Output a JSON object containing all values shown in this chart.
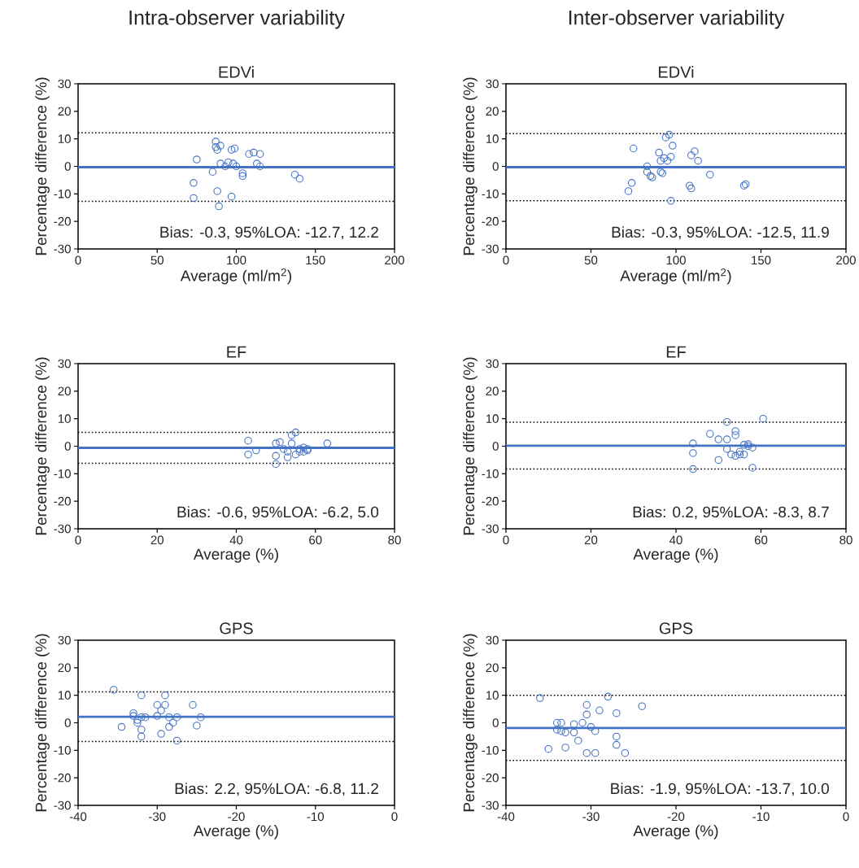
{
  "chart_data": [
    {
      "type": "scatter",
      "subtitle": "Intra-observer variability",
      "title": "EDVi",
      "xlabel": "Average (ml/m$^{2}$)",
      "ylabel": "Percentage difference (%)",
      "color": "#4472c4",
      "marker": "circle",
      "xlim": [
        0,
        200
      ],
      "xticks": [
        0,
        50,
        100,
        150,
        200
      ],
      "ylim": [
        -30,
        30
      ],
      "yticks": [
        -30,
        -20,
        -10,
        0,
        10,
        20,
        30
      ],
      "x": [
        73,
        73,
        75,
        85,
        87,
        87,
        88,
        88,
        89,
        90,
        90,
        93,
        95,
        97,
        97,
        98,
        99,
        100,
        104,
        104,
        108,
        111,
        113,
        115,
        115,
        137,
        140
      ],
      "values": [
        -6,
        -11.5,
        2.5,
        -2,
        7,
        9,
        6,
        -9,
        -14.5,
        1,
        7.5,
        0,
        1.5,
        -11,
        6,
        1,
        6.5,
        0,
        -2.5,
        -3.5,
        4.5,
        5,
        1,
        0,
        4.5,
        -3,
        -4.5
      ],
      "ref_lines": [
        {
          "axis": "y",
          "value": -0.3,
          "color": "#4472c4",
          "line_style": "solid"
        },
        {
          "axis": "y",
          "value": -12.7,
          "color": "#000000",
          "line_style": "dotted"
        },
        {
          "axis": "y",
          "value": 12.2,
          "color": "#000000",
          "line_style": "dotted"
        }
      ],
      "annotations": [
        "Bias: -0.3, 95%LOA: -12.7, 12.2"
      ]
    },
    {
      "type": "scatter",
      "subtitle": "Inter-observer variability",
      "title": "EDVi",
      "xlabel": "Average (ml/m$^{2}$)",
      "ylabel": "Percentage difference (%)",
      "color": "#4472c4",
      "marker": "circle",
      "xlim": [
        0,
        200
      ],
      "xticks": [
        0,
        50,
        100,
        150,
        200
      ],
      "ylim": [
        -30,
        30
      ],
      "yticks": [
        -30,
        -20,
        -10,
        0,
        10,
        20,
        30
      ],
      "x": [
        72,
        74,
        75,
        83,
        83,
        85,
        86,
        90,
        91,
        91,
        92,
        93,
        94,
        95,
        96,
        97,
        97,
        98,
        108,
        109,
        109,
        111,
        113,
        120,
        140,
        141
      ],
      "values": [
        -9,
        -6,
        6.5,
        0,
        -2,
        -3.5,
        -4,
        5,
        2,
        -2,
        -2.5,
        3,
        10.5,
        2,
        11.5,
        -12.5,
        3.5,
        7.5,
        -7,
        -8,
        4,
        5.5,
        2,
        -3,
        -7,
        -6.5
      ],
      "ref_lines": [
        {
          "axis": "y",
          "value": -0.3,
          "color": "#4472c4",
          "line_style": "solid"
        },
        {
          "axis": "y",
          "value": -12.5,
          "color": "#000000",
          "line_style": "dotted"
        },
        {
          "axis": "y",
          "value": 11.9,
          "color": "#000000",
          "line_style": "dotted"
        }
      ],
      "annotations": [
        "Bias: -0.3, 95%LOA: -12.5, 11.9"
      ]
    },
    {
      "type": "scatter",
      "title": "EF",
      "xlabel": "Average (%)",
      "ylabel": "Percentage difference (%)",
      "color": "#4472c4",
      "marker": "circle",
      "xlim": [
        0,
        80
      ],
      "xticks": [
        0,
        20,
        40,
        60,
        80
      ],
      "ylim": [
        -30,
        30
      ],
      "yticks": [
        -30,
        -20,
        -10,
        0,
        10,
        20,
        30
      ],
      "x": [
        43,
        43,
        45,
        50,
        50,
        50,
        51,
        52,
        53,
        53,
        54,
        54,
        55,
        55,
        56,
        56,
        57,
        57,
        58,
        58,
        63
      ],
      "values": [
        2,
        -3,
        -1.5,
        1,
        -3.5,
        -6.5,
        1.5,
        -1,
        -2,
        -4,
        4,
        1,
        5,
        -3,
        -1,
        -2,
        -0.5,
        -2,
        -1,
        -1.5,
        1
      ],
      "ref_lines": [
        {
          "axis": "y",
          "value": -0.6,
          "color": "#4472c4",
          "line_style": "solid"
        },
        {
          "axis": "y",
          "value": -6.2,
          "color": "#000000",
          "line_style": "dotted"
        },
        {
          "axis": "y",
          "value": 5.0,
          "color": "#000000",
          "line_style": "dotted"
        }
      ],
      "annotations": [
        "Bias: -0.6, 95%LOA: -6.2, 5.0"
      ]
    },
    {
      "type": "scatter",
      "title": "EF",
      "xlabel": "Average (%)",
      "ylabel": "Percentage difference (%)",
      "color": "#4472c4",
      "marker": "circle",
      "xlim": [
        0,
        80
      ],
      "xticks": [
        0,
        20,
        40,
        60,
        80
      ],
      "ylim": [
        -30,
        30
      ],
      "yticks": [
        -30,
        -20,
        -10,
        0,
        10,
        20,
        30
      ],
      "x": [
        44,
        44,
        44,
        48,
        50,
        50,
        52,
        52,
        52,
        53,
        54,
        54,
        54,
        55,
        55,
        56,
        56,
        57,
        57,
        58,
        58,
        60.5
      ],
      "values": [
        1,
        -2.5,
        -8.3,
        4.5,
        -5,
        2.5,
        8.8,
        2.5,
        -1,
        -3,
        -3.5,
        4,
        5.5,
        -2,
        -3,
        0.5,
        -3,
        0.7,
        0,
        -0.5,
        -7.8,
        10
      ],
      "ref_lines": [
        {
          "axis": "y",
          "value": 0.2,
          "color": "#4472c4",
          "line_style": "solid"
        },
        {
          "axis": "y",
          "value": -8.3,
          "color": "#000000",
          "line_style": "dotted"
        },
        {
          "axis": "y",
          "value": 8.7,
          "color": "#000000",
          "line_style": "dotted"
        }
      ],
      "annotations": [
        "Bias: 0.2, 95%LOA: -8.3, 8.7"
      ]
    },
    {
      "type": "scatter",
      "title": "GPS",
      "xlabel": "Average (%)",
      "ylabel": "Percentage difference (%)",
      "color": "#4472c4",
      "marker": "circle",
      "xlim": [
        -40,
        0
      ],
      "xticks": [
        -40,
        -30,
        -20,
        -10,
        0
      ],
      "ylim": [
        -30,
        30
      ],
      "yticks": [
        -30,
        -20,
        -10,
        0,
        10,
        20,
        30
      ],
      "x": [
        -35.5,
        -34.5,
        -33,
        -33,
        -32.5,
        -32.5,
        -32,
        -32,
        -32,
        -32,
        -31.5,
        -30,
        -30,
        -29.5,
        -29.5,
        -29,
        -29,
        -28.5,
        -28.5,
        -28,
        -27.5,
        -27.5,
        -25.5,
        -25,
        -24.5
      ],
      "values": [
        12,
        -1.5,
        3.5,
        2.5,
        1,
        0,
        -2.5,
        -5,
        10,
        2,
        2,
        6.5,
        2.5,
        -4,
        4.5,
        10,
        6.5,
        2,
        -1.5,
        0,
        -6.5,
        2,
        6.5,
        -1,
        2
      ],
      "ref_lines": [
        {
          "axis": "y",
          "value": 2.2,
          "color": "#4472c4",
          "line_style": "solid"
        },
        {
          "axis": "y",
          "value": -6.8,
          "color": "#000000",
          "line_style": "dotted"
        },
        {
          "axis": "y",
          "value": 11.2,
          "color": "#000000",
          "line_style": "dotted"
        }
      ],
      "annotations": [
        "Bias: 2.2, 95%LOA: -6.8, 11.2"
      ]
    },
    {
      "type": "scatter",
      "title": "GPS",
      "xlabel": "Average (%)",
      "ylabel": "Percentage difference (%)",
      "color": "#4472c4",
      "marker": "circle",
      "xlim": [
        -40,
        0
      ],
      "xticks": [
        -40,
        -30,
        -20,
        -10,
        0
      ],
      "ylim": [
        -30,
        30
      ],
      "yticks": [
        -30,
        -20,
        -10,
        0,
        10,
        20,
        30
      ],
      "x": [
        -36,
        -35,
        -34,
        -34,
        -33.5,
        -33.5,
        -33,
        -33,
        -32,
        -32,
        -31.5,
        -31,
        -30.5,
        -30.5,
        -30.5,
        -30,
        -29.5,
        -29.5,
        -29,
        -28,
        -27,
        -27,
        -27,
        -26,
        -24
      ],
      "values": [
        9,
        -9.5,
        -2.5,
        0,
        -3,
        0,
        -3.5,
        -9,
        -3.5,
        -0.5,
        -6.5,
        0,
        3,
        -11,
        6.5,
        -1.5,
        -3,
        -11,
        4.5,
        9.5,
        3.5,
        -5,
        -8,
        -11,
        6
      ],
      "ref_lines": [
        {
          "axis": "y",
          "value": -1.9,
          "color": "#4472c4",
          "line_style": "solid"
        },
        {
          "axis": "y",
          "value": -13.7,
          "color": "#000000",
          "line_style": "dotted"
        },
        {
          "axis": "y",
          "value": 10.0,
          "color": "#000000",
          "line_style": "dotted"
        }
      ],
      "annotations": [
        "Bias: -1.9, 95%LOA: -13.7, 10.0"
      ]
    }
  ]
}
